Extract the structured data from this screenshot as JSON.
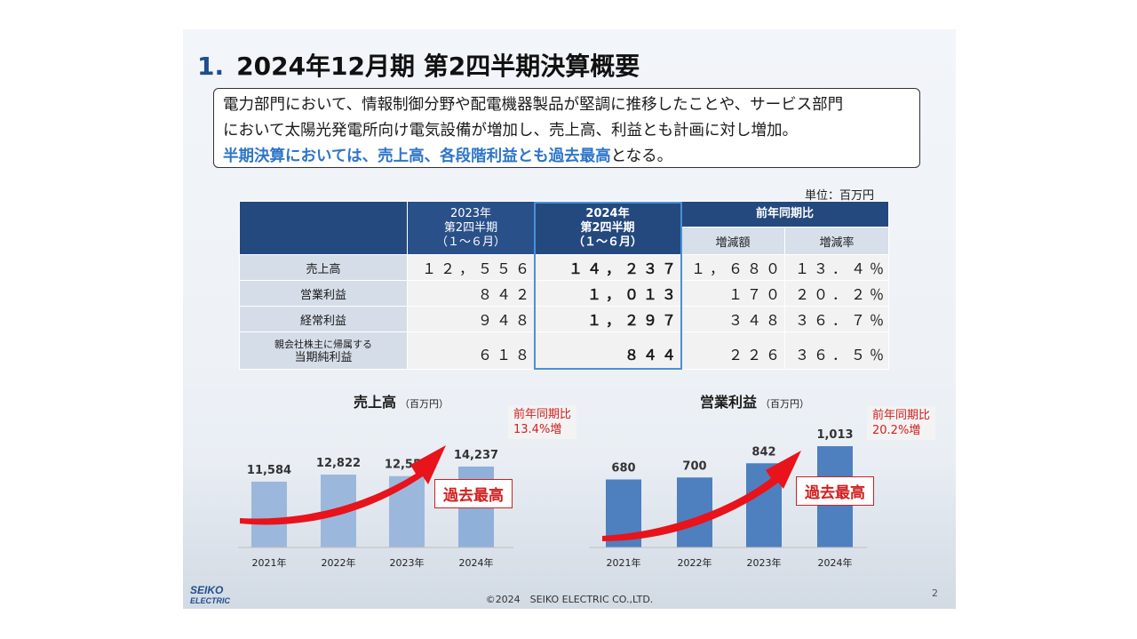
{
  "title": {
    "number": "1.",
    "text": "2024年12月期 第2四半期決算概要"
  },
  "summary": {
    "line1": "電力部門において、情報制御分野や配電機器製品が堅調に推移したことや、サービス部門",
    "line2": "において太陽光発電所向け電気設備が増加し、売上高、利益とも計画に対し増加。",
    "line3_highlight": "半期決算においては、売上高、各段階利益とも過去最高",
    "line3_rest": "となる。"
  },
  "table": {
    "unit": "単位：百万円",
    "prev_header": [
      "2023年",
      "第2四半期",
      "（１～６月）"
    ],
    "cur_header": [
      "2024年",
      "第2四半期",
      "（１～６月）"
    ],
    "yoy_header": "前年同期比",
    "diff_header": "増減額",
    "rate_header": "増減率",
    "rows": [
      {
        "label": "売上高",
        "label2": "",
        "prev": "１２，５５６",
        "cur": "１４，２３７",
        "diff": "１，６８０",
        "rate": "１３．４％"
      },
      {
        "label": "営業利益",
        "label2": "",
        "prev": "８４２",
        "cur": "１，０１３",
        "diff": "１７０",
        "rate": "２０．２％"
      },
      {
        "label": "経常利益",
        "label2": "",
        "prev": "９４８",
        "cur": "１，２９７",
        "diff": "３４８",
        "rate": "３６．７％"
      },
      {
        "label": "親会社株主に帰属する",
        "label2": "当期純利益",
        "prev": "６１８",
        "cur": "８４４",
        "diff": "２２６",
        "rate": "３６．５％"
      }
    ]
  },
  "charts": {
    "sales": {
      "title": "売上高",
      "unit": "（百万円）",
      "note_line1": "前年同期比",
      "note_line2": "13.4%増",
      "record_label": "過去最高"
    },
    "op": {
      "title": "営業利益",
      "unit": "（百万円）",
      "note_line1": "前年同期比",
      "note_line2": "20.2%増",
      "record_label": "過去最高"
    }
  },
  "chart_data": [
    {
      "type": "bar",
      "title": "売上高",
      "categories": [
        "2021年",
        "2022年",
        "2023年",
        "2024年"
      ],
      "values": [
        11584,
        12822,
        12556,
        14237
      ],
      "value_labels": [
        "11,584",
        "12,822",
        "12,556",
        "14,237"
      ],
      "colors": [
        "#9bb8dc",
        "#9bb8dc",
        "#9bb8dc",
        "#8fb0d9"
      ],
      "ylim": [
        0,
        16000
      ]
    },
    {
      "type": "bar",
      "title": "営業利益",
      "categories": [
        "2021年",
        "2022年",
        "2023年",
        "2024年"
      ],
      "values": [
        680,
        700,
        842,
        1013
      ],
      "value_labels": [
        "680",
        "700",
        "842",
        "1,013"
      ],
      "colors": [
        "#4e7fbf",
        "#4e7fbf",
        "#4e7fbf",
        "#4e7fbf"
      ],
      "ylim": [
        0,
        1200
      ]
    }
  ],
  "footer": {
    "copyright": "©2024　SEIKO ELECTRIC CO.,LTD.",
    "page": "2"
  },
  "logo": {
    "line1": "SEIKO",
    "line2": "ELECTRIC"
  }
}
